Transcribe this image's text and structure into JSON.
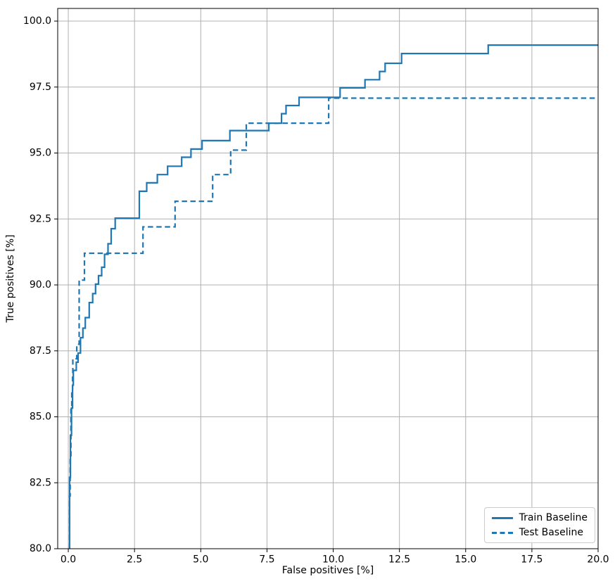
{
  "chart_data": {
    "type": "line",
    "subtype": "step",
    "title": "",
    "xlabel": "False positives [%]",
    "ylabel": "True positives [%]",
    "xlim": [
      -0.4,
      20.0
    ],
    "ylim": [
      80.0,
      100.48
    ],
    "start_y": 80.0,
    "end_x": 20.0,
    "xticks": [
      "0.0",
      "2.5",
      "5.0",
      "7.5",
      "10.0",
      "12.5",
      "15.0",
      "17.5",
      "20.0"
    ],
    "yticks": [
      "80.0",
      "82.5",
      "85.0",
      "87.5",
      "90.0",
      "92.5",
      "95.0",
      "97.5",
      "100.0"
    ],
    "grid": true,
    "legend_position": "lower right",
    "colors": {
      "line": "#1f77b4",
      "grid": "#b0b0b0",
      "spine": "#000000",
      "tick_text": "#000000",
      "legend_border": "#cccccc",
      "background": "#ffffff"
    },
    "series": [
      {
        "name": "Train Baseline",
        "style": "solid",
        "points": [
          [
            0.05,
            82.7
          ],
          [
            0.08,
            84.3
          ],
          [
            0.12,
            85.33
          ],
          [
            0.16,
            86.2
          ],
          [
            0.19,
            86.76
          ],
          [
            0.3,
            87.07
          ],
          [
            0.37,
            87.42
          ],
          [
            0.46,
            88.0
          ],
          [
            0.55,
            88.36
          ],
          [
            0.64,
            88.76
          ],
          [
            0.79,
            89.33
          ],
          [
            0.92,
            89.67
          ],
          [
            1.03,
            90.03
          ],
          [
            1.14,
            90.35
          ],
          [
            1.26,
            90.67
          ],
          [
            1.37,
            91.16
          ],
          [
            1.5,
            91.56
          ],
          [
            1.62,
            92.13
          ],
          [
            1.77,
            92.53
          ],
          [
            2.68,
            93.55
          ],
          [
            2.96,
            93.87
          ],
          [
            3.36,
            94.18
          ],
          [
            3.75,
            94.5
          ],
          [
            4.28,
            94.84
          ],
          [
            4.63,
            95.15
          ],
          [
            5.05,
            95.47
          ],
          [
            6.1,
            95.85
          ],
          [
            7.57,
            96.13
          ],
          [
            8.05,
            96.49
          ],
          [
            8.22,
            96.8
          ],
          [
            8.71,
            97.11
          ],
          [
            10.26,
            97.47
          ],
          [
            11.2,
            97.78
          ],
          [
            11.75,
            98.09
          ],
          [
            11.96,
            98.4
          ],
          [
            12.58,
            98.77
          ],
          [
            15.85,
            99.09
          ]
        ]
      },
      {
        "name": "Test Baseline",
        "style": "dashed",
        "points": [
          [
            0.05,
            82.0
          ],
          [
            0.07,
            83.5
          ],
          [
            0.1,
            85.33
          ],
          [
            0.13,
            85.9
          ],
          [
            0.16,
            86.5
          ],
          [
            0.17,
            87.2
          ],
          [
            0.32,
            87.75
          ],
          [
            0.41,
            90.18
          ],
          [
            0.61,
            91.2
          ],
          [
            2.82,
            92.2
          ],
          [
            4.03,
            93.17
          ],
          [
            5.45,
            94.18
          ],
          [
            6.13,
            95.11
          ],
          [
            6.72,
            96.13
          ],
          [
            9.83,
            97.08
          ]
        ]
      }
    ]
  }
}
